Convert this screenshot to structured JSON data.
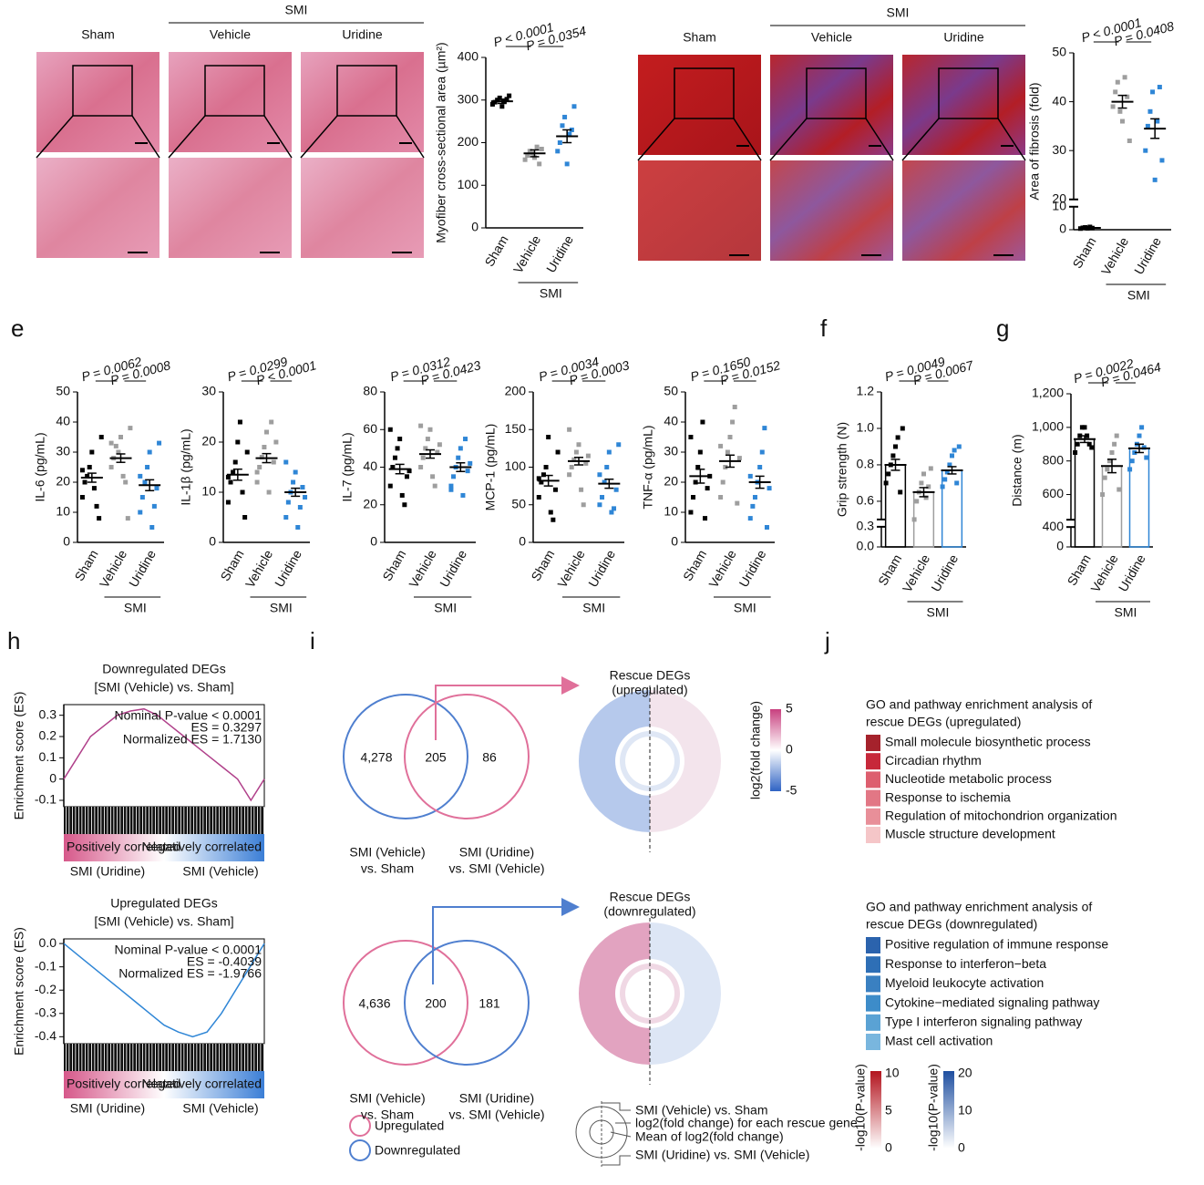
{
  "panel_labels": [
    "e",
    "f",
    "g",
    "h",
    "i",
    "j"
  ],
  "histology": [
    {
      "group": "SMI",
      "labels": [
        "Sham",
        "Vehicle",
        "Uridine"
      ]
    },
    {
      "group": "SMI",
      "labels": [
        "Sham",
        "Vehicle",
        "Uridine"
      ]
    }
  ],
  "venn": [
    {
      "counts": [
        "4,278",
        "205",
        "86"
      ],
      "left_label": [
        "SMI (Vehicle)",
        "vs. Sham"
      ],
      "right_label": [
        "SMI (Uridine)",
        "vs. SMI (Vehicle)"
      ],
      "rescue_title": [
        "Rescue DEGs",
        "(upregulated)"
      ],
      "color": "#e0709a"
    },
    {
      "counts": [
        "4,636",
        "200",
        "181"
      ],
      "left_label": [
        "SMI (Vehicle)",
        "vs. Sham"
      ],
      "right_label": [
        "SMI (Uridine)",
        "vs. SMI (Vehicle)"
      ],
      "rescue_title": [
        "Rescue DEGs",
        "(downregulated)"
      ],
      "color": "#4f7fcf"
    }
  ],
  "venn_legend": [
    "Upregulated",
    "Downregulated"
  ],
  "colorbar_i": {
    "title": "log2(fold change)",
    "ticks": [
      "5",
      "0",
      "-5"
    ]
  },
  "schematic": [
    "SMI (Vehicle) vs. Sham",
    "log2(fold change) for each rescue gene",
    "Mean of log2(fold change)",
    "SMI (Uridine) vs. SMI (Vehicle)"
  ],
  "go": [
    {
      "title": [
        "GO and pathway enrichment analysis of",
        "rescue DEGs (upregulated)"
      ],
      "title_color": "#d6588a",
      "terms": [
        "Small molecule biosynthetic process",
        "Circadian rhythm",
        "Nucleotide metabolic process",
        "Response to ischemia",
        "Regulation of mitochondrion organization",
        "Muscle structure development"
      ],
      "colors": [
        "#a5222c",
        "#c7283a",
        "#dd5e6e",
        "#e27785",
        "#e88f99",
        "#f5c6c8"
      ]
    },
    {
      "title": [
        "GO and pathway enrichment analysis of",
        "rescue DEGs (downregulated)"
      ],
      "title_color": "#3a78c0",
      "terms": [
        "Positive regulation of immune response",
        "Response to interferon−beta",
        "Myeloid leukocyte activation",
        "Cytokine−mediated signaling pathway",
        "Type I interferon signaling pathway",
        "Mast cell activation"
      ],
      "colors": [
        "#2b63ad",
        "#2e6fb6",
        "#3a80c1",
        "#3d8cc9",
        "#5aa2d4",
        "#79b6de"
      ]
    }
  ],
  "go_colorbars": [
    {
      "title": "-log10(P-value)",
      "ticks": [
        "10",
        "5",
        "0"
      ]
    },
    {
      "title": "-log10(P-value)",
      "ticks": [
        "20",
        "10",
        "0"
      ]
    }
  ],
  "chart_data": [
    {
      "type": "dot",
      "ylabel": "Myofiber cross-sectional area (µm²)",
      "categories": [
        "Sham",
        "Vehicle",
        "Uridine"
      ],
      "group_label": "SMI",
      "p_values": [
        "P < 0.0001",
        "P = 0.0354"
      ],
      "ylim": [
        0,
        400
      ],
      "yticks": [
        0,
        100,
        200,
        300,
        400
      ],
      "groups": [
        {
          "color": "#000000",
          "points": [
            290,
            295,
            300,
            305,
            285,
            298,
            302,
            310
          ],
          "mean": 297,
          "sem": 5
        },
        {
          "color": "#9e9e9e",
          "points": [
            160,
            170,
            180,
            175,
            165,
            190,
            150,
            185
          ],
          "mean": 175,
          "sem": 8
        },
        {
          "color": "#2f86d6",
          "points": [
            180,
            200,
            240,
            260,
            150,
            220,
            230,
            285
          ],
          "mean": 215,
          "sem": 15
        }
      ]
    },
    {
      "type": "dot",
      "ylabel": "Area of fibrosis (fold)",
      "categories": [
        "Sham",
        "Vehicle",
        "Uridine"
      ],
      "group_label": "SMI",
      "p_values": [
        "P < 0.0001",
        "P = 0.0408"
      ],
      "ylim": [
        0,
        50
      ],
      "yticks": [
        0,
        10,
        20,
        30,
        40,
        50
      ],
      "ybreak": [
        10,
        20
      ],
      "groups": [
        {
          "color": "#000000",
          "points": [
            0.5,
            0.8,
            1,
            0.6,
            1.2,
            0.7
          ],
          "mean": 0.8,
          "sem": 0.1
        },
        {
          "color": "#9e9e9e",
          "points": [
            39,
            42,
            44,
            38,
            36,
            45,
            41,
            32
          ],
          "mean": 40,
          "sem": 1.3
        },
        {
          "color": "#2f86d6",
          "points": [
            30,
            35,
            38,
            42,
            24,
            36,
            43,
            28
          ],
          "mean": 34.5,
          "sem": 2
        }
      ]
    },
    {
      "type": "dot",
      "ylabel": "IL-6 (pg/mL)",
      "categories": [
        "Sham",
        "Vehicle",
        "Uridine"
      ],
      "group_label": "SMI",
      "p_values": [
        "P = 0.0062",
        "P = 0.0008"
      ],
      "ylim": [
        0,
        50
      ],
      "yticks": [
        0,
        10,
        20,
        30,
        40,
        50
      ],
      "groups": [
        {
          "color": "#000000",
          "points": [
            15,
            20,
            22,
            25,
            30,
            18,
            12,
            8,
            35,
            24
          ],
          "mean": 21.5,
          "sem": 1.5
        },
        {
          "color": "#9e9e9e",
          "points": [
            25,
            28,
            32,
            30,
            35,
            22,
            20,
            8,
            38,
            33
          ],
          "mean": 28,
          "sem": 1.4
        },
        {
          "color": "#2f86d6",
          "points": [
            10,
            15,
            20,
            25,
            30,
            5,
            12,
            18,
            33,
            22
          ],
          "mean": 19,
          "sem": 1.8
        }
      ]
    },
    {
      "type": "dot",
      "ylabel": "IL-1β (pg/mL)",
      "categories": [
        "Sham",
        "Vehicle",
        "Uridine"
      ],
      "group_label": "SMI",
      "p_values": [
        "P = 0.0299",
        "P < 0.0001"
      ],
      "ylim": [
        0,
        30
      ],
      "yticks": [
        0,
        10,
        20,
        30
      ],
      "groups": [
        {
          "color": "#000000",
          "points": [
            8,
            12,
            14,
            16,
            20,
            24,
            10,
            5,
            18,
            13
          ],
          "mean": 13.5,
          "sem": 1.1
        },
        {
          "color": "#9e9e9e",
          "points": [
            12,
            15,
            17,
            19,
            22,
            10,
            24,
            16,
            20,
            14
          ],
          "mean": 16.8,
          "sem": 0.9
        },
        {
          "color": "#2f86d6",
          "points": [
            5,
            8,
            10,
            12,
            14,
            3,
            7,
            11,
            9,
            16
          ],
          "mean": 10,
          "sem": 0.8
        }
      ]
    },
    {
      "type": "dot",
      "ylabel": "IL-7 (pg/mL)",
      "categories": [
        "Sham",
        "Vehicle",
        "Uridine"
      ],
      "group_label": "SMI",
      "p_values": [
        "P = 0.0312",
        "P = 0.0423"
      ],
      "ylim": [
        0,
        80
      ],
      "yticks": [
        0,
        20,
        40,
        60,
        80
      ],
      "groups": [
        {
          "color": "#000000",
          "points": [
            30,
            40,
            45,
            50,
            55,
            25,
            20,
            35,
            38,
            60
          ],
          "mean": 39,
          "sem": 2.5
        },
        {
          "color": "#9e9e9e",
          "points": [
            40,
            45,
            50,
            55,
            60,
            35,
            30,
            48,
            52,
            62
          ],
          "mean": 47,
          "sem": 2.2
        },
        {
          "color": "#2f86d6",
          "points": [
            30,
            35,
            40,
            45,
            50,
            25,
            55,
            38,
            42,
            28
          ],
          "mean": 40,
          "sem": 2.3
        }
      ]
    },
    {
      "type": "dot",
      "ylabel": "MCP-1 (pg/mL)",
      "categories": [
        "Sham",
        "Vehicle",
        "Uridine"
      ],
      "group_label": "SMI",
      "p_values": [
        "P = 0.0034",
        "P = 0.0003"
      ],
      "ylim": [
        0,
        200
      ],
      "yticks": [
        0,
        50,
        100,
        150,
        200
      ],
      "groups": [
        {
          "color": "#000000",
          "points": [
            60,
            80,
            90,
            100,
            140,
            40,
            30,
            70,
            120,
            85
          ],
          "mean": 82,
          "sem": 7
        },
        {
          "color": "#9e9e9e",
          "points": [
            90,
            100,
            110,
            120,
            130,
            70,
            50,
            105,
            115,
            150
          ],
          "mean": 108,
          "sem": 5
        },
        {
          "color": "#2f86d6",
          "points": [
            50,
            60,
            80,
            100,
            120,
            40,
            45,
            70,
            130,
            90
          ],
          "mean": 78,
          "sem": 6
        }
      ]
    },
    {
      "type": "dot",
      "ylabel": "TNF-α (pg/mL)",
      "categories": [
        "Sham",
        "Vehicle",
        "Uridine"
      ],
      "group_label": "SMI",
      "p_values": [
        "P = 0.1650",
        "P = 0.0152"
      ],
      "ylim": [
        0,
        50
      ],
      "yticks": [
        0,
        10,
        20,
        30,
        40,
        50
      ],
      "groups": [
        {
          "color": "#000000",
          "points": [
            10,
            15,
            20,
            25,
            30,
            40,
            8,
            18,
            22,
            35
          ],
          "mean": 22,
          "sem": 2.3
        },
        {
          "color": "#9e9e9e",
          "points": [
            15,
            20,
            25,
            30,
            35,
            40,
            45,
            13,
            28,
            32
          ],
          "mean": 27,
          "sem": 2
        },
        {
          "color": "#2f86d6",
          "points": [
            8,
            12,
            15,
            20,
            25,
            30,
            38,
            5,
            18,
            22
          ],
          "mean": 20,
          "sem": 2
        }
      ]
    },
    {
      "type": "bar",
      "ylabel": "Grip strength (N)",
      "categories": [
        "Sham",
        "Vehicle",
        "Uridine"
      ],
      "group_label": "SMI",
      "p_values": [
        "P = 0.0049",
        "P = 0.0067"
      ],
      "ylim": [
        0,
        1.2
      ],
      "yticks": [
        {
          "value": 0,
          "label": "0.0"
        },
        0.3,
        0.6,
        0.8,
        {
          "value": 1,
          "label": "1.0"
        },
        1.2
      ],
      "ybreak": [
        0.3,
        0.5
      ],
      "groups": [
        {
          "color": "#000000",
          "points": [
            0.7,
            0.75,
            0.8,
            0.85,
            0.9,
            0.95,
            0.65,
            1.0
          ],
          "mean": 0.8,
          "sem": 0.03
        },
        {
          "color": "#9e9e9e",
          "points": [
            0.5,
            0.6,
            0.65,
            0.7,
            0.75,
            0.62,
            0.68,
            0.78
          ],
          "mean": 0.65,
          "sem": 0.025
        },
        {
          "color": "#2f86d6",
          "points": [
            0.68,
            0.72,
            0.76,
            0.8,
            0.85,
            0.88,
            0.7,
            0.9
          ],
          "mean": 0.77,
          "sem": 0.02
        }
      ]
    },
    {
      "type": "bar",
      "ylabel": "Distance (m)",
      "categories": [
        "Sham",
        "Vehicle",
        "Uridine"
      ],
      "group_label": "SMI",
      "p_values": [
        "P = 0.0022",
        "P = 0.0464"
      ],
      "ylim": [
        0,
        1200
      ],
      "yticks": [
        0,
        400,
        600,
        800,
        {
          "value": 1000,
          "label": "1,000"
        },
        {
          "value": 1200,
          "label": "1,200"
        }
      ],
      "ybreak": [
        400,
        450
      ],
      "groups": [
        {
          "color": "#000000",
          "points": [
            850,
            900,
            950,
            1000,
            1000,
            950,
            900,
            880
          ],
          "mean": 930,
          "sem": 20
        },
        {
          "color": "#9e9e9e",
          "points": [
            600,
            700,
            750,
            800,
            850,
            900,
            950,
            630
          ],
          "mean": 770,
          "sem": 40
        },
        {
          "color": "#2f86d6",
          "points": [
            750,
            800,
            850,
            900,
            950,
            1000,
            880,
            820
          ],
          "mean": 875,
          "sem": 25
        }
      ]
    },
    {
      "type": "gsea",
      "title": [
        "Downregulated DEGs",
        "[SMI (Vehicle) vs. Sham]"
      ],
      "ylabel": "Enrichment score (ES)",
      "annotations": [
        "Nominal P-value < 0.0001",
        "ES = 0.3297",
        "Normalized ES = 1.7130"
      ],
      "color": "#b0408a",
      "ylim": [
        -0.13,
        0.35
      ],
      "yticks": [
        -0.1,
        0,
        0.1,
        0.2,
        0.3
      ],
      "values": [
        0,
        0.1,
        0.2,
        0.25,
        0.3,
        0.32,
        0.33,
        0.3,
        0.25,
        0.2,
        0.15,
        0.1,
        0.05,
        0,
        -0.1,
        0
      ],
      "rank_labels": [
        "Positively correlated",
        "Negatively correlated"
      ],
      "group_labels": [
        "SMI (Uridine)",
        "SMI (Vehicle)"
      ]
    },
    {
      "type": "gsea",
      "title": [
        "Upregulated DEGs",
        "[SMI (Vehicle) vs. Sham]"
      ],
      "ylabel": "Enrichment score (ES)",
      "annotations": [
        "Nominal P-value < 0.0001",
        "ES = -0.4039",
        "Normalized ES = -1.9766"
      ],
      "color": "#2f86d6",
      "ylim": [
        -0.43,
        0.02
      ],
      "yticks": [
        -0.4,
        -0.3,
        -0.2,
        -0.1,
        {
          "value": 0,
          "label": "0.0"
        }
      ],
      "values": [
        0,
        -0.05,
        -0.1,
        -0.15,
        -0.2,
        -0.25,
        -0.3,
        -0.35,
        -0.38,
        -0.4,
        -0.38,
        -0.3,
        -0.2,
        -0.1,
        0
      ],
      "rank_labels": [
        "Positively correlated",
        "Negatively correlated"
      ],
      "group_labels": [
        "SMI (Uridine)",
        "SMI (Vehicle)"
      ]
    }
  ]
}
